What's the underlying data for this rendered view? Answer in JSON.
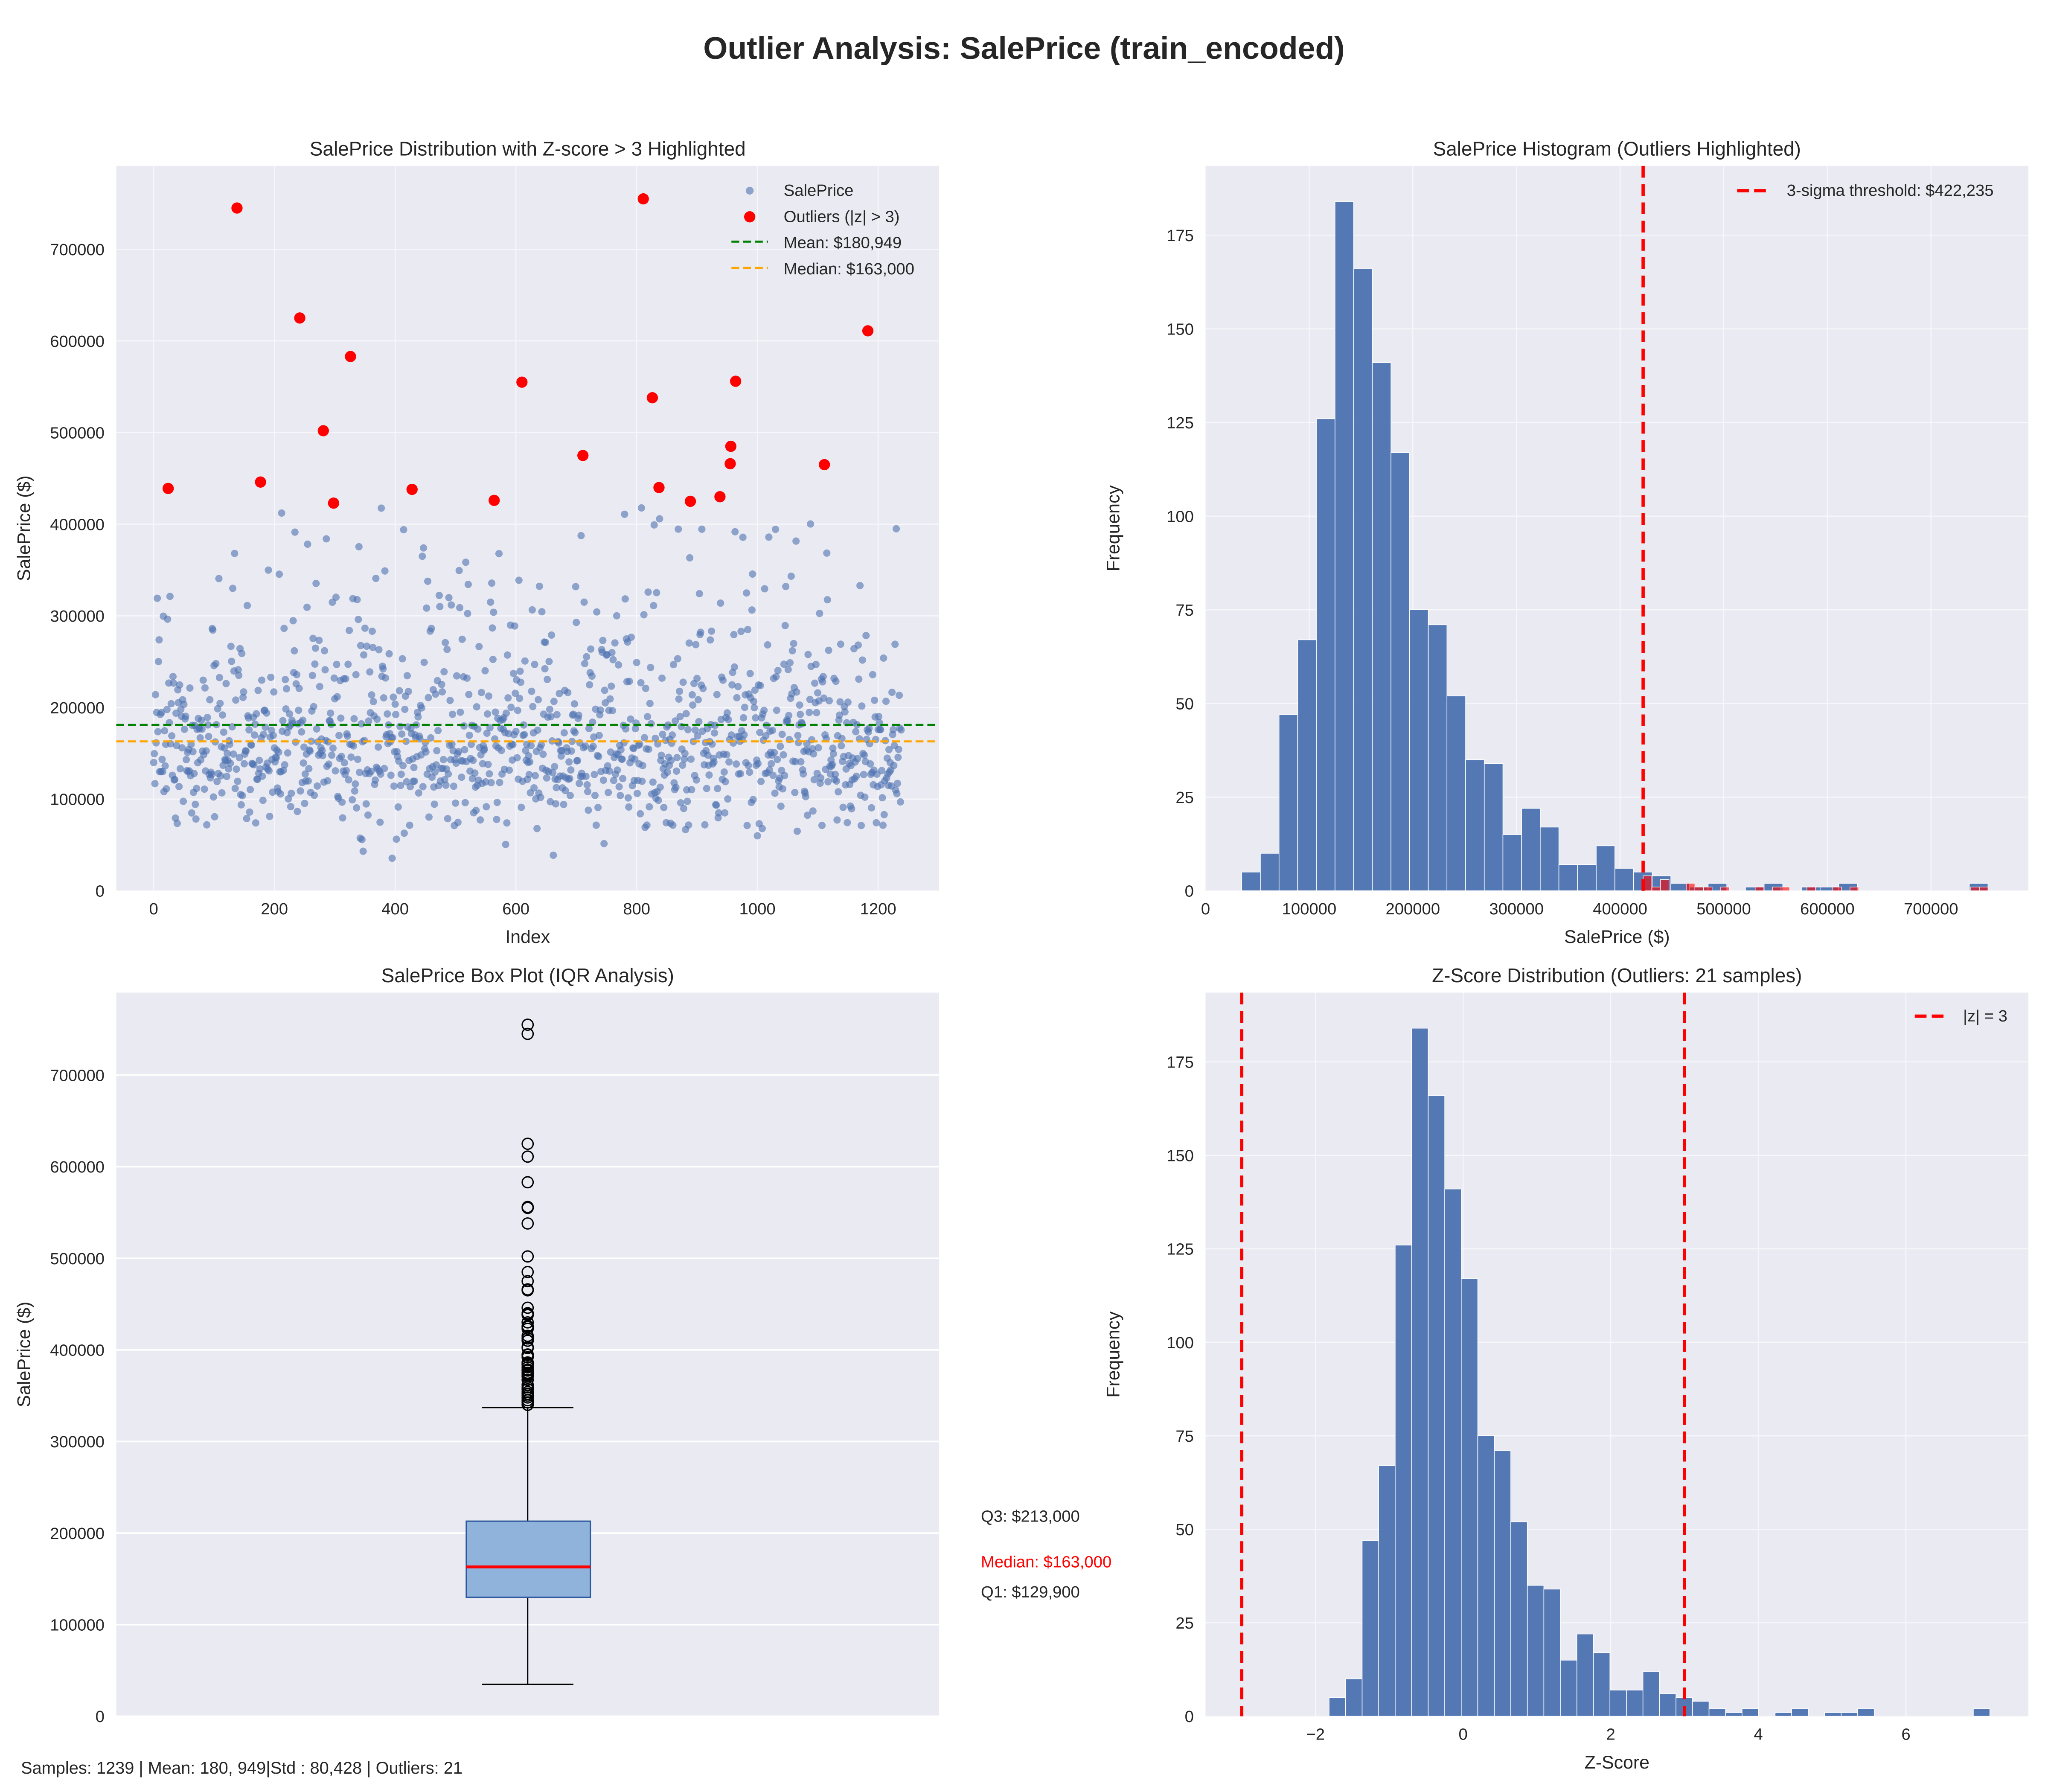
{
  "title": "Outlier Analysis: SalePrice (train_encoded)",
  "footer": "Samples: 1239 | Mean: 180, 949|Std : 80,428 | Outliers: 21",
  "colors": {
    "bg": "#eaeaf2",
    "blue": "#4c72b0",
    "red": "#ff0000",
    "green": "#008000",
    "orange": "#ffa500",
    "box": "#8fb3da"
  },
  "chart_data": [
    {
      "type": "scatter",
      "title": "SalePrice Distribution with Z-score > 3 Highlighted",
      "xlabel": "Index",
      "ylabel": "SalePrice ($)",
      "xlim": [
        -62,
        1301
      ],
      "ylim": [
        0,
        791000
      ],
      "xticks": [
        0,
        200,
        400,
        600,
        800,
        1000,
        1200
      ],
      "yticks": [
        0,
        100000,
        200000,
        300000,
        400000,
        500000,
        600000,
        700000
      ],
      "legend": {
        "placement": "top-right",
        "entries": [
          "SalePrice",
          "Outliers (|z| > 3)",
          "Mean: $180,949",
          "Median: $163,000"
        ]
      },
      "mean": 180949,
      "median": 163000,
      "outliers": [
        [
          24,
          439000
        ],
        [
          138,
          745000
        ],
        [
          177,
          446000
        ],
        [
          242,
          625000
        ],
        [
          281,
          502000
        ],
        [
          298,
          423000
        ],
        [
          326,
          583000
        ],
        [
          428,
          438000
        ],
        [
          564,
          426000
        ],
        [
          610,
          555000
        ],
        [
          711,
          475000
        ],
        [
          811,
          755000
        ],
        [
          826,
          538000
        ],
        [
          837,
          440000
        ],
        [
          889,
          425000
        ],
        [
          938,
          430000
        ],
        [
          955,
          466000
        ],
        [
          956,
          485000
        ],
        [
          964,
          556000
        ],
        [
          1111,
          465000
        ],
        [
          1183,
          611000
        ]
      ],
      "n_samples": 1239
    },
    {
      "type": "bar",
      "title": "SalePrice Histogram (Outliers Highlighted)",
      "xlabel": "SalePrice ($)",
      "ylabel": "Frequency",
      "xlim": [
        0,
        794000
      ],
      "ylim": [
        0,
        193.5
      ],
      "xticks": [
        0,
        100000,
        200000,
        300000,
        400000,
        500000,
        600000,
        700000
      ],
      "yticks": [
        0,
        25,
        50,
        75,
        100,
        125,
        150,
        175
      ],
      "bin_start": 34900,
      "bin_end": 755000,
      "counts": [
        5,
        10,
        47,
        67,
        126,
        184,
        166,
        141,
        117,
        75,
        71,
        52,
        35,
        34,
        15,
        22,
        17,
        7,
        7,
        12,
        6,
        5,
        4,
        2,
        1,
        2,
        0,
        1,
        2,
        0,
        1,
        1,
        2,
        0,
        0,
        0,
        0,
        0,
        0,
        2
      ],
      "threshold": 422235,
      "legend": {
        "placement": "top-right",
        "entries": [
          "3-sigma threshold: $422,235"
        ]
      }
    },
    {
      "type": "box",
      "title": "SalePrice Box Plot (IQR Analysis)",
      "ylabel": "SalePrice ($)",
      "ylim": [
        0,
        790000
      ],
      "yticks": [
        0,
        100000,
        200000,
        300000,
        400000,
        500000,
        600000,
        700000
      ],
      "q1": 129900,
      "median": 163000,
      "q3": 213000,
      "whisker_low": 34900,
      "whisker_high": 337000,
      "fliers": [
        340000,
        342643,
        345000,
        348000,
        350000,
        352000,
        354000,
        357000,
        359100,
        361919,
        367294,
        370878,
        372402,
        374000,
        375000,
        377426,
        378500,
        381000,
        383970,
        385000,
        386250,
        392000,
        394432,
        395000,
        402000,
        403000,
        410000,
        412500,
        415298,
        423000,
        425000,
        426000,
        430000,
        438000,
        439000,
        440000,
        446000,
        465000,
        466000,
        475000,
        485000,
        502000,
        538000,
        555000,
        556000,
        583000,
        611000,
        625000,
        745000,
        755000
      ],
      "annotations": {
        "q3": "Q3: $213,000",
        "median": "Median: $163,000",
        "q1": "Q1: $129,900"
      }
    },
    {
      "type": "bar",
      "title": "Z-Score Distribution (Outliers: 21 samples)",
      "xlabel": "Z-Score",
      "ylabel": "Frequency",
      "xlim": [
        -3.49,
        7.66
      ],
      "ylim": [
        0,
        193.5
      ],
      "xticks": [
        -2,
        0,
        2,
        4,
        6
      ],
      "xtick_labels": [
        "−2",
        "0",
        "2",
        "4",
        "6"
      ],
      "yticks": [
        0,
        25,
        50,
        75,
        100,
        125,
        150,
        175
      ],
      "thresholds": [
        -3,
        3
      ],
      "legend": {
        "placement": "top-right",
        "entries": [
          "|z| = 3"
        ]
      }
    }
  ]
}
